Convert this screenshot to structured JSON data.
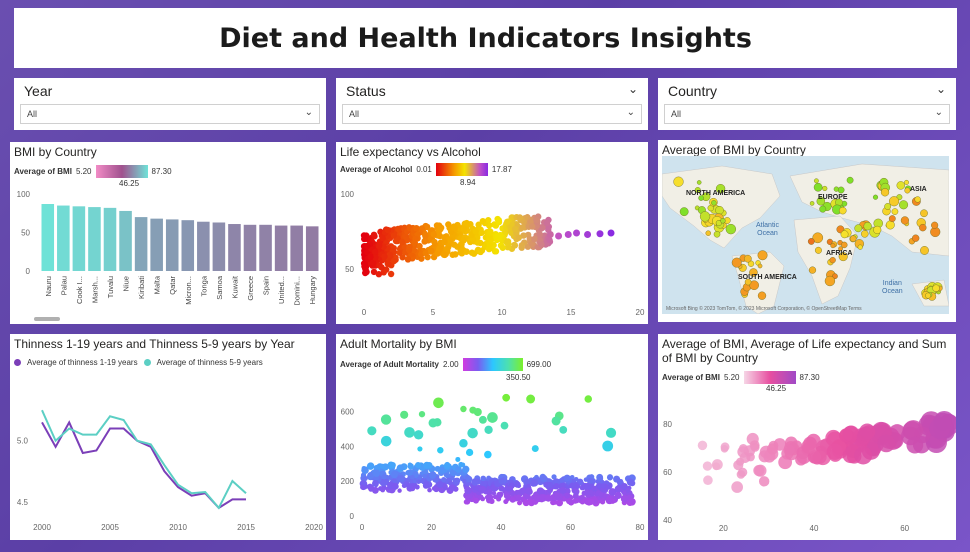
{
  "page_title": "Diet and Health Indicators Insights",
  "slicers": [
    {
      "label": "Year",
      "value": "All"
    },
    {
      "label": "Status",
      "value": "All"
    },
    {
      "label": "Country",
      "value": "All"
    }
  ],
  "bmi_country": {
    "title": "BMI by Country",
    "legend_label": "Average of BMI",
    "legend_min": "5.20",
    "legend_max": "87.30",
    "legend_mid": "46.25",
    "colors": {
      "low": "#f28cc6",
      "mid": "#a0518e",
      "high": "#6fe3d8"
    }
  },
  "life_alcohol": {
    "title": "Life expectancy vs Alcohol",
    "legend_label": "Average of Alcohol",
    "legend_min": "0.01",
    "legend_max": "17.87",
    "legend_mid": "8.94"
  },
  "map": {
    "title": "Average of BMI by Country",
    "labels": [
      "NORTH AMERICA",
      "EUROPE",
      "ASIA",
      "AFRICA",
      "SOUTH AMERICA"
    ],
    "seas": [
      "Atlantic\nOcean",
      "Indian\nOcean"
    ],
    "footer": "Microsoft Bing  © 2023 TomTom, © 2023 Microsoft Corporation, © OpenStreetMap  Terms"
  },
  "thinness": {
    "title": "Thinness 1-19 years and Thinness 5-9 years by Year",
    "series_names": [
      "Average of  thinness  1-19 years",
      "Average of  thinness 5-9 years"
    ],
    "colors": [
      "#7b3fb8",
      "#5ccfc4"
    ]
  },
  "adult_mortality": {
    "title": "Adult Mortality by BMI",
    "legend_label": "Average of Adult Mortality",
    "legend_min": "2.00",
    "legend_max": "699.00",
    "legend_mid": "350.50"
  },
  "bubble": {
    "title": "Average of BMI, Average of Life expectancy and Sum of BMI by Country",
    "legend_label": "Average of BMI",
    "legend_min": "5.20",
    "legend_max": "87.30",
    "legend_mid": "46.25"
  },
  "chart_data": [
    {
      "type": "bar",
      "title": "BMI by Country",
      "categories": [
        "Nauru",
        "Palau",
        "Cook I...",
        "Marsh...",
        "Tuvalu",
        "Niue",
        "Kiribati",
        "Malta",
        "Qatar",
        "Micron...",
        "Tonga",
        "Samoa",
        "Kuwait",
        "Greece",
        "Spain",
        "United...",
        "Domini...",
        "Hungary"
      ],
      "values": [
        87,
        85,
        84,
        83,
        82,
        78,
        70,
        68,
        67,
        66,
        64,
        63,
        61,
        60,
        60,
        59,
        59,
        58
      ],
      "ylim": [
        0,
        100
      ],
      "yticks": [
        "0",
        "50",
        "100"
      ]
    },
    {
      "type": "scatter",
      "title": "Life expectancy vs Alcohol",
      "xlim": [
        0,
        20
      ],
      "ylim": [
        40,
        100
      ],
      "xticks": [
        "0",
        "5",
        "10",
        "15",
        "20"
      ],
      "yticks": [
        "50",
        "100"
      ]
    },
    {
      "type": "line",
      "title": "Thinness 1-19 years and Thinness 5-9 years by Year",
      "x": [
        2000,
        2001,
        2002,
        2003,
        2004,
        2005,
        2006,
        2007,
        2008,
        2009,
        2010,
        2011,
        2012,
        2013,
        2014,
        2015
      ],
      "series": [
        {
          "name": "Average of  thinness  1-19 years",
          "values": [
            5.15,
            4.95,
            5.15,
            4.9,
            4.92,
            5.1,
            5.1,
            5.0,
            4.95,
            4.75,
            4.62,
            4.55,
            4.57,
            4.45,
            4.52,
            4.52
          ]
        },
        {
          "name": "Average of  thinness 5-9 years",
          "values": [
            5.25,
            5.0,
            5.1,
            5.05,
            5.05,
            5.2,
            5.17,
            5.0,
            4.97,
            4.8,
            4.64,
            4.57,
            4.58,
            4.45,
            4.67,
            4.57
          ]
        }
      ],
      "xlim": [
        2000,
        2020
      ],
      "ylim": [
        4.4,
        5.35
      ],
      "xticks": [
        "2000",
        "2005",
        "2010",
        "2015",
        "2020"
      ],
      "yticks": [
        "4.5",
        "5.0"
      ]
    },
    {
      "type": "scatter",
      "title": "Adult Mortality by BMI",
      "xlim": [
        0,
        80
      ],
      "ylim": [
        0,
        700
      ],
      "xticks": [
        "0",
        "20",
        "40",
        "60",
        "80"
      ],
      "yticks": [
        "0",
        "200",
        "400",
        "600"
      ]
    },
    {
      "type": "scatter",
      "title": "Average of BMI, Average of Life expectancy and Sum of BMI by Country",
      "xlim": [
        10,
        70
      ],
      "ylim": [
        40,
        85
      ],
      "xticks": [
        "20",
        "40",
        "60"
      ],
      "yticks": [
        "40",
        "60",
        "80"
      ]
    }
  ]
}
